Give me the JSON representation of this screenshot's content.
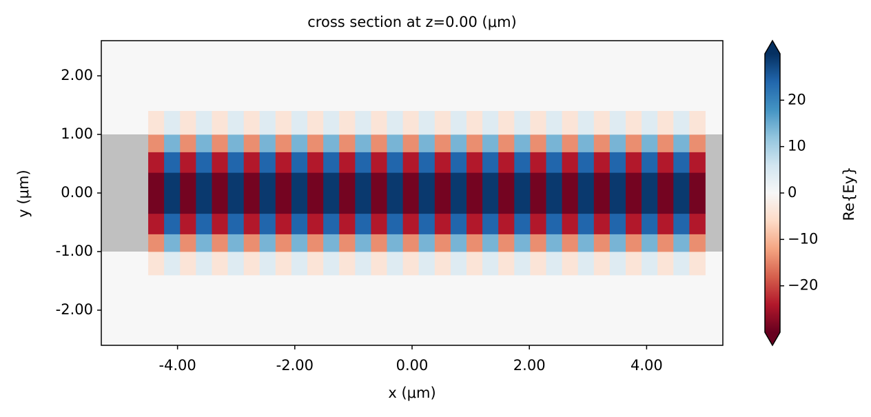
{
  "chart_data": {
    "type": "heatmap",
    "title": "cross section at z=0.00 (μm)",
    "x_label": "x (μm)",
    "y_label": "y (μm)",
    "colorbar_label": "Re{Ey}",
    "colormap": "RdBu",
    "xlim": [
      -5.3,
      5.3
    ],
    "ylim": [
      -2.6,
      2.6
    ],
    "clim": [
      -30,
      30
    ],
    "xticks": [
      {
        "value": -4,
        "label": "-4.00"
      },
      {
        "value": -2,
        "label": "-2.00"
      },
      {
        "value": 0,
        "label": "0.00"
      },
      {
        "value": 2,
        "label": "2.00"
      },
      {
        "value": 4,
        "label": "4.00"
      }
    ],
    "yticks": [
      {
        "value": -2,
        "label": "-2.00"
      },
      {
        "value": -1,
        "label": "-1.00"
      },
      {
        "value": 0,
        "label": "0.00"
      },
      {
        "value": 1,
        "label": "1.00"
      },
      {
        "value": 2,
        "label": "2.00"
      }
    ],
    "cticks": [
      {
        "value": -20,
        "label": "−20"
      },
      {
        "value": -10,
        "label": "−10"
      },
      {
        "value": 0,
        "label": "0"
      },
      {
        "value": 10,
        "label": "10"
      },
      {
        "value": 20,
        "label": "20"
      }
    ],
    "waveguide": {
      "ylim": [
        -1,
        1
      ],
      "color": "#c0c0c0"
    },
    "x_edges": [
      -4.5,
      -4.229,
      -3.957,
      -3.686,
      -3.414,
      -3.143,
      -2.871,
      -2.6,
      -2.329,
      -2.057,
      -1.786,
      -1.514,
      -1.243,
      -0.971,
      -0.7,
      -0.429,
      -0.157,
      0.114,
      0.386,
      0.657,
      0.929,
      1.2,
      1.471,
      1.743,
      2.014,
      2.286,
      2.557,
      2.829,
      3.1,
      3.371,
      3.643,
      3.914,
      4.186,
      4.457,
      4.729,
      5.0
    ],
    "y_edges": [
      -1.4,
      -1.0,
      -0.7,
      -0.35,
      0.35,
      0.7,
      1.0,
      1.4
    ],
    "values": [
      [
        -4,
        4,
        -4,
        4,
        -4,
        4,
        -4,
        4,
        -4,
        4,
        -4,
        4,
        -4,
        4,
        -4,
        4,
        -4,
        4,
        -4,
        4,
        -4,
        4,
        -4,
        4,
        -4,
        4,
        -4,
        4,
        -4,
        4,
        -4,
        4,
        -4,
        4,
        -4
      ],
      [
        -14,
        14,
        -14,
        14,
        -14,
        14,
        -14,
        14,
        -14,
        14,
        -14,
        14,
        -14,
        14,
        -14,
        14,
        -14,
        14,
        -14,
        14,
        -14,
        14,
        -14,
        14,
        -14,
        14,
        -14,
        14,
        -14,
        14,
        -14,
        14,
        -14,
        14,
        -14
      ],
      [
        -24,
        24,
        -24,
        24,
        -24,
        24,
        -24,
        24,
        -24,
        24,
        -24,
        24,
        -24,
        24,
        -24,
        24,
        -24,
        24,
        -24,
        24,
        -24,
        24,
        -24,
        24,
        -24,
        24,
        -24,
        24,
        -24,
        24,
        -24,
        24,
        -24,
        24,
        -24
      ],
      [
        -29,
        29,
        -29,
        29,
        -29,
        29,
        -29,
        29,
        -29,
        29,
        -29,
        29,
        -29,
        29,
        -29,
        29,
        -29,
        29,
        -29,
        29,
        -29,
        29,
        -29,
        29,
        -29,
        29,
        -29,
        29,
        -29,
        29,
        -29,
        29,
        -29,
        29,
        -29
      ],
      [
        -24,
        24,
        -24,
        24,
        -24,
        24,
        -24,
        24,
        -24,
        24,
        -24,
        24,
        -24,
        24,
        -24,
        24,
        -24,
        24,
        -24,
        24,
        -24,
        24,
        -24,
        24,
        -24,
        24,
        -24,
        24,
        -24,
        24,
        -24,
        24,
        -24,
        24,
        -24
      ],
      [
        -14,
        14,
        -14,
        14,
        -14,
        14,
        -14,
        14,
        -14,
        14,
        -14,
        14,
        -14,
        14,
        -14,
        14,
        -14,
        14,
        -14,
        14,
        -14,
        14,
        -14,
        14,
        -14,
        14,
        -14,
        14,
        -14,
        14,
        -14,
        14,
        -14,
        14,
        -14
      ],
      [
        -4,
        4,
        -4,
        4,
        -4,
        4,
        -4,
        4,
        -4,
        4,
        -4,
        4,
        -4,
        4,
        -4,
        4,
        -4,
        4,
        -4,
        4,
        -4,
        4,
        -4,
        4,
        -4,
        4,
        -4,
        4,
        -4,
        4,
        -4,
        4,
        -4,
        4,
        -4
      ]
    ]
  }
}
